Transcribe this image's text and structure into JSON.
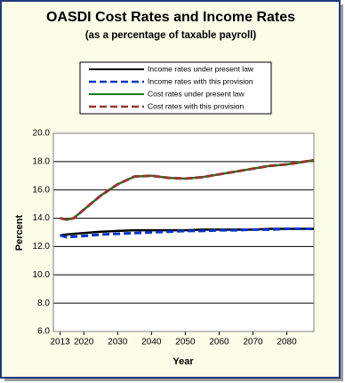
{
  "chart_data": {
    "type": "line",
    "title": "OASDI Cost Rates and Income Rates",
    "subtitle": "(as a percentage of taxable payroll)",
    "x_label": "Year",
    "y_label": "Percent",
    "x": [
      2013,
      2015,
      2017,
      2020,
      2025,
      2030,
      2035,
      2040,
      2045,
      2050,
      2055,
      2060,
      2065,
      2070,
      2075,
      2080,
      2088
    ],
    "series": [
      {
        "name": "Income rates under present law",
        "color": "#000000",
        "dashed": false,
        "values": [
          12.8,
          12.85,
          12.9,
          12.95,
          13.05,
          13.1,
          13.15,
          13.15,
          13.15,
          13.15,
          13.2,
          13.2,
          13.2,
          13.2,
          13.25,
          13.25,
          13.25
        ]
      },
      {
        "name": "Income rates with this provision",
        "color": "#0033cc",
        "dashed": true,
        "values": [
          12.8,
          12.65,
          12.7,
          12.75,
          12.85,
          12.9,
          12.95,
          13.0,
          13.05,
          13.1,
          13.1,
          13.15,
          13.15,
          13.2,
          13.2,
          13.25,
          13.25
        ]
      },
      {
        "name": "Cost rates under present law",
        "color": "#1a7a1a",
        "dashed": false,
        "values": [
          14.0,
          13.9,
          14.0,
          14.6,
          15.6,
          16.4,
          16.95,
          17.0,
          16.85,
          16.8,
          16.9,
          17.1,
          17.3,
          17.5,
          17.7,
          17.8,
          18.1
        ]
      },
      {
        "name": "Cost rates with this provision",
        "color": "#993333",
        "dashed": true,
        "values": [
          14.0,
          13.9,
          14.0,
          14.6,
          15.6,
          16.4,
          16.95,
          17.0,
          16.85,
          16.8,
          16.9,
          17.1,
          17.3,
          17.5,
          17.7,
          17.8,
          18.1
        ]
      }
    ],
    "xlim": [
      2011,
      2088
    ],
    "xticks": [
      2013,
      2020,
      2030,
      2040,
      2050,
      2060,
      2070,
      2080
    ],
    "ylim": [
      6,
      20
    ],
    "yticks": [
      {
        "value": 6,
        "label": "6.0"
      },
      {
        "value": 8,
        "label": "8.0"
      },
      {
        "value": 10,
        "label": "10.0"
      },
      {
        "value": 12,
        "label": "12.0"
      },
      {
        "value": 14,
        "label": "14.0"
      },
      {
        "value": 16,
        "label": "16.0"
      },
      {
        "value": 18,
        "label": "18.0"
      },
      {
        "value": 20,
        "label": "20.0"
      }
    ],
    "grid": true
  }
}
